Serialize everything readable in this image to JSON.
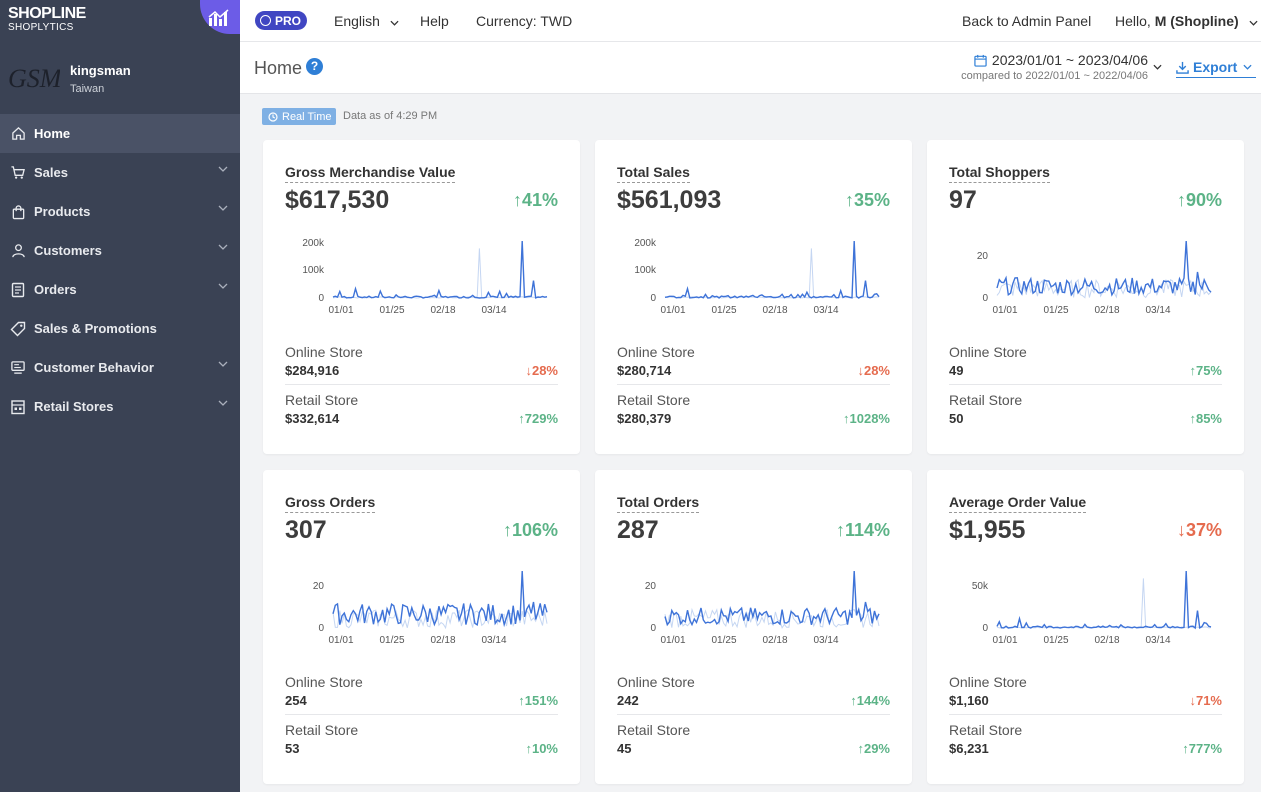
{
  "brand": {
    "line1": "SHOPLINE",
    "line2": "SHOPLYTICS"
  },
  "store": {
    "logo_text": "GSM",
    "name": "kingsman",
    "region": "Taiwan"
  },
  "nav": [
    {
      "label": "Home",
      "icon": "home-icon",
      "active": true,
      "has_children": false
    },
    {
      "label": "Sales",
      "icon": "cart-icon",
      "active": false,
      "has_children": true
    },
    {
      "label": "Products",
      "icon": "bag-icon",
      "active": false,
      "has_children": true
    },
    {
      "label": "Customers",
      "icon": "user-icon",
      "active": false,
      "has_children": true
    },
    {
      "label": "Orders",
      "icon": "document-icon",
      "active": false,
      "has_children": true
    },
    {
      "label": "Sales & Promotions",
      "icon": "tag-icon",
      "active": false,
      "has_children": false
    },
    {
      "label": "Customer Behavior",
      "icon": "behavior-icon",
      "active": false,
      "has_children": true
    },
    {
      "label": "Retail Stores",
      "icon": "store-icon",
      "active": false,
      "has_children": true
    }
  ],
  "topbar": {
    "pro_label": "PRO",
    "language": "English",
    "help": "Help",
    "currency": "Currency: TWD",
    "back_admin": "Back to Admin Panel",
    "greeting": "Hello,",
    "user": "M (Shopline)"
  },
  "header": {
    "title": "Home",
    "date_range": "2023/01/01 ~ 2023/04/06",
    "compare": "compared to 2022/01/01 ~ 2022/04/06",
    "export": "Export"
  },
  "realtime": {
    "badge": "Real Time",
    "as_of": "Data as of 4:29 PM"
  },
  "colors": {
    "up": "#5cb387",
    "down": "#e56b4e",
    "primary_line": "#3e73d8",
    "compare_line": "#c5d6f2",
    "sidebar": "#3a4254"
  },
  "x_ticks": [
    "01/01",
    "01/25",
    "02/18",
    "03/14"
  ],
  "cards": [
    {
      "title": "Gross Merchandise Value",
      "value": "$617,530",
      "change": "41%",
      "direction": "up",
      "y_ticks": [
        "200k",
        "100k",
        "0"
      ],
      "online_label": "Online Store",
      "online_value": "$284,916",
      "online_change": "28%",
      "online_direction": "down",
      "retail_label": "Retail Store",
      "retail_value": "$332,614",
      "retail_change": "729%",
      "retail_direction": "up"
    },
    {
      "title": "Total Sales",
      "value": "$561,093",
      "change": "35%",
      "direction": "up",
      "y_ticks": [
        "200k",
        "100k",
        "0"
      ],
      "online_label": "Online Store",
      "online_value": "$280,714",
      "online_change": "28%",
      "online_direction": "down",
      "retail_label": "Retail Store",
      "retail_value": "$280,379",
      "retail_change": "1028%",
      "retail_direction": "up"
    },
    {
      "title": "Total Shoppers",
      "value": "97",
      "change": "90%",
      "direction": "up",
      "y_ticks": [
        "20",
        "0"
      ],
      "online_label": "Online Store",
      "online_value": "49",
      "online_change": "75%",
      "online_direction": "up",
      "retail_label": "Retail Store",
      "retail_value": "50",
      "retail_change": "85%",
      "retail_direction": "up"
    },
    {
      "title": "Gross Orders",
      "value": "307",
      "change": "106%",
      "direction": "up",
      "y_ticks": [
        "20",
        "0"
      ],
      "online_label": "Online Store",
      "online_value": "254",
      "online_change": "151%",
      "online_direction": "up",
      "retail_label": "Retail Store",
      "retail_value": "53",
      "retail_change": "10%",
      "retail_direction": "up"
    },
    {
      "title": "Total Orders",
      "value": "287",
      "change": "114%",
      "direction": "up",
      "y_ticks": [
        "20",
        "0"
      ],
      "online_label": "Online Store",
      "online_value": "242",
      "online_change": "144%",
      "online_direction": "up",
      "retail_label": "Retail Store",
      "retail_value": "45",
      "retail_change": "29%",
      "retail_direction": "up"
    },
    {
      "title": "Average Order Value",
      "value": "$1,955",
      "change": "37%",
      "direction": "down",
      "y_ticks": [
        "50k",
        "0"
      ],
      "online_label": "Online Store",
      "online_value": "$1,160",
      "online_change": "71%",
      "online_direction": "down",
      "retail_label": "Retail Store",
      "retail_value": "$6,231",
      "retail_change": "777%",
      "retail_direction": "up"
    }
  ]
}
